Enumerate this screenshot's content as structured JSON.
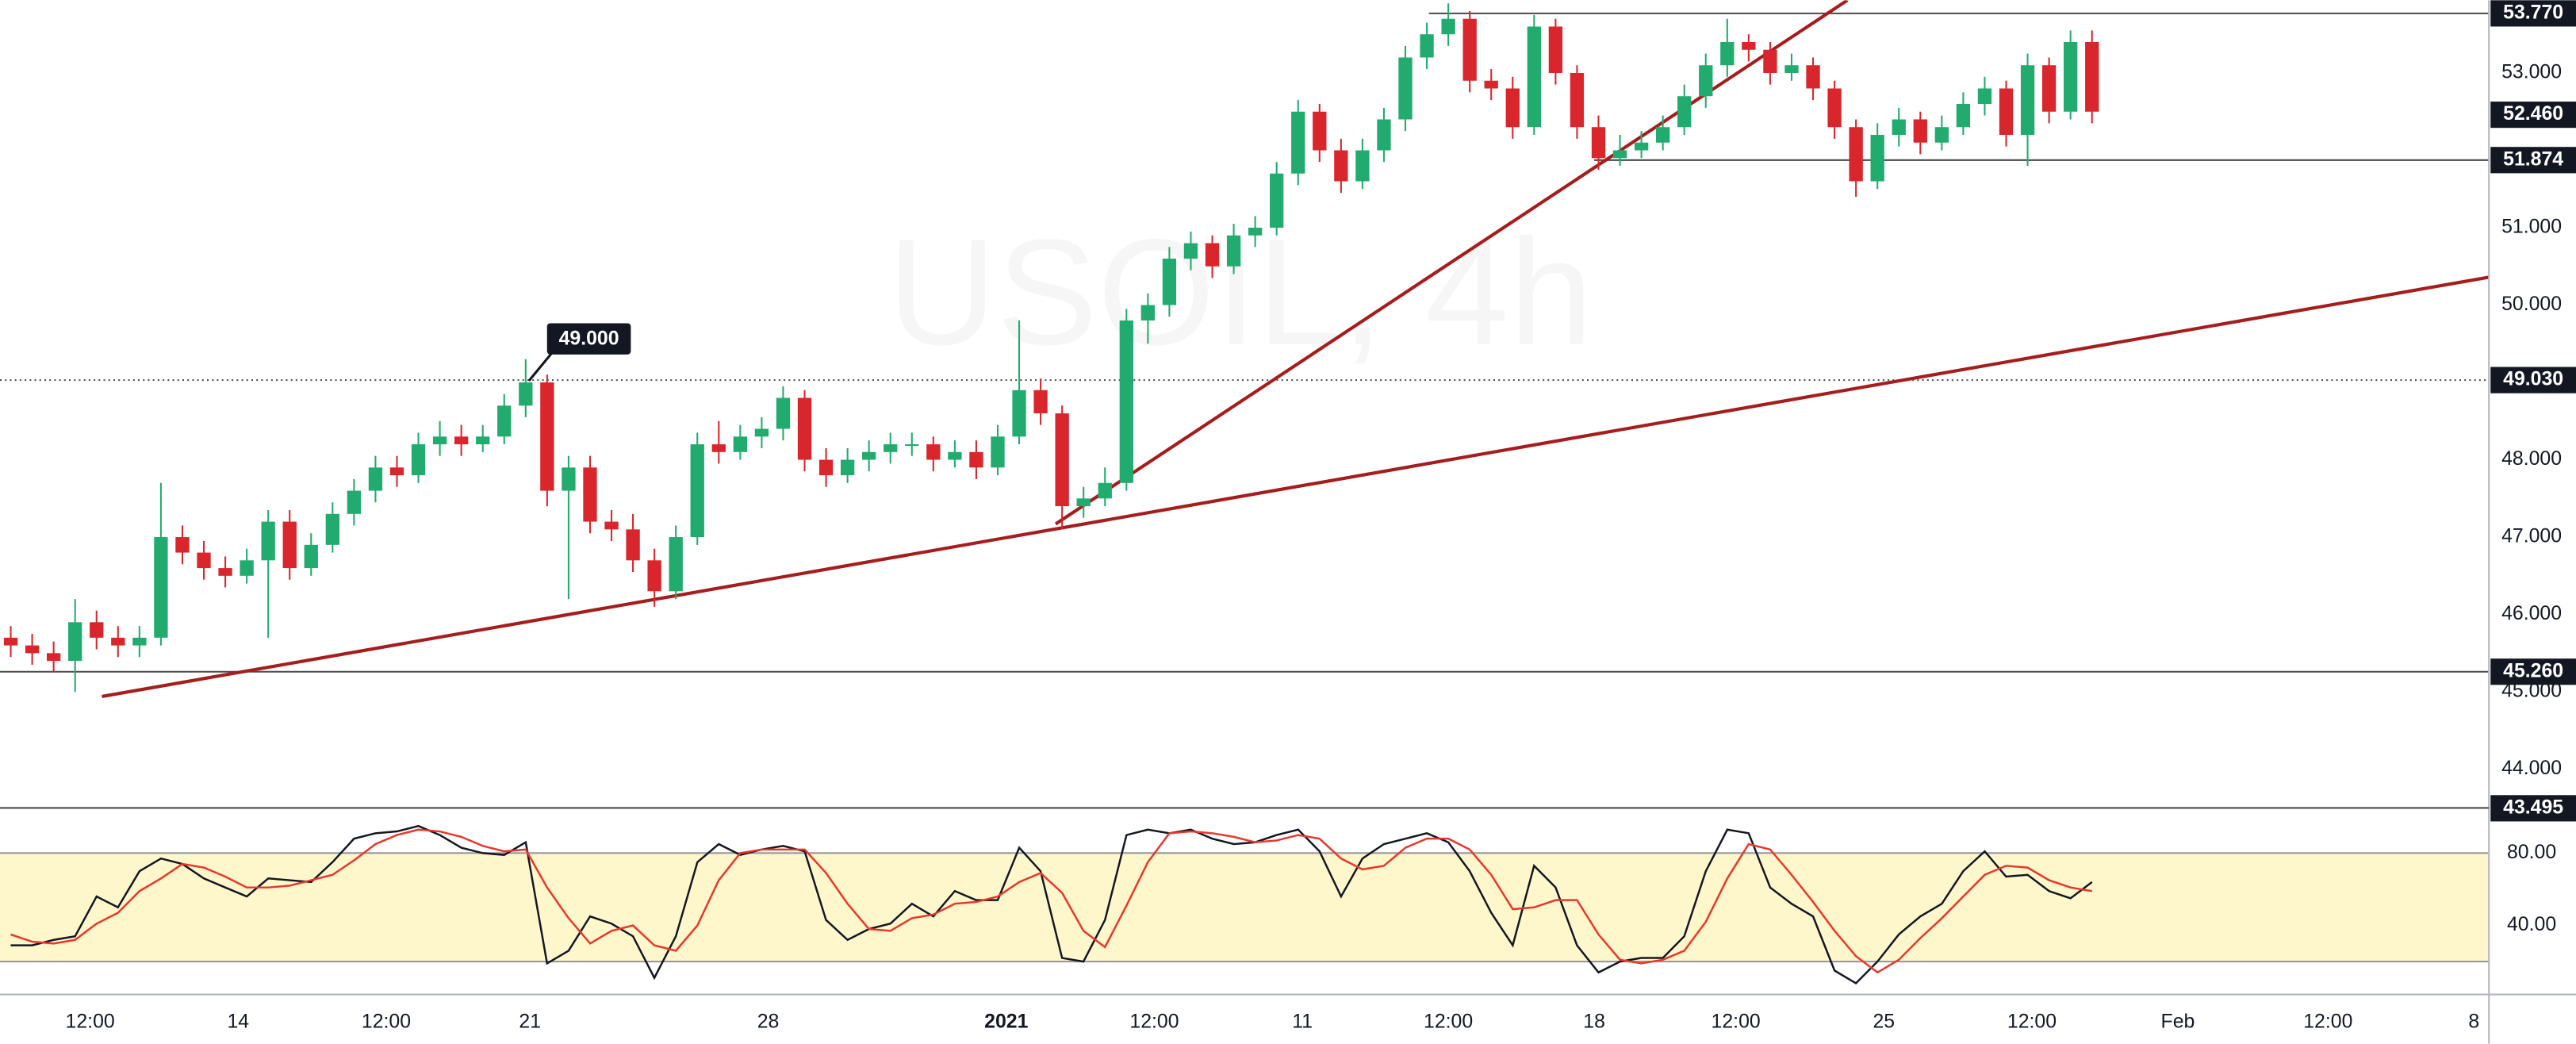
{
  "chart_data": [
    {
      "type": "candlestick",
      "title": "USOIL, 4h",
      "xlim": [
        0,
        116
      ],
      "ylim": [
        43.51,
        53.94
      ],
      "up_color": "#22ab6e",
      "down_color": "#d8262c",
      "trend_color": "#a51d1d",
      "open": [
        45.7,
        45.6,
        45.5,
        45.4,
        45.9,
        45.7,
        45.6,
        45.7,
        47.0,
        46.8,
        46.6,
        46.5,
        46.7,
        47.2,
        46.6,
        46.9,
        47.3,
        47.6,
        47.9,
        47.8,
        48.2,
        48.3,
        48.2,
        48.3,
        48.7,
        49.0,
        47.6,
        47.9,
        47.2,
        47.1,
        46.7,
        46.3,
        47.0,
        48.2,
        48.1,
        48.3,
        48.4,
        48.8,
        48.0,
        47.8,
        48.0,
        48.1,
        48.2,
        48.2,
        48.0,
        48.1,
        47.9,
        48.3,
        48.9,
        48.6,
        47.4,
        47.5,
        47.7,
        49.8,
        50.0,
        50.6,
        50.8,
        50.5,
        50.9,
        51.0,
        51.7,
        52.5,
        52.0,
        51.6,
        52.0,
        52.4,
        53.2,
        53.5,
        53.7,
        52.9,
        52.8,
        52.3,
        53.6,
        53.0,
        52.3,
        51.9,
        52.0,
        52.1,
        52.3,
        52.7,
        53.1,
        53.4,
        53.3,
        53.0,
        53.1,
        52.8,
        52.3,
        51.6,
        52.2,
        52.4,
        52.1,
        52.3,
        52.6,
        52.8,
        52.2,
        53.1,
        52.5,
        53.4
      ],
      "high": [
        45.85,
        45.75,
        45.65,
        46.2,
        46.05,
        45.85,
        45.85,
        47.7,
        47.15,
        46.95,
        46.75,
        46.85,
        47.35,
        47.35,
        47.05,
        47.45,
        47.75,
        48.05,
        48.05,
        48.35,
        48.5,
        48.45,
        48.45,
        48.85,
        49.3,
        49.1,
        48.05,
        48.05,
        47.35,
        47.3,
        46.85,
        47.15,
        48.35,
        48.5,
        48.45,
        48.55,
        48.95,
        48.9,
        48.15,
        48.15,
        48.25,
        48.35,
        48.35,
        48.3,
        48.25,
        48.25,
        48.45,
        49.8,
        49.05,
        48.7,
        47.65,
        47.9,
        49.95,
        50.15,
        50.75,
        50.95,
        50.9,
        51.05,
        51.15,
        51.85,
        52.65,
        52.6,
        52.15,
        52.15,
        52.55,
        53.35,
        53.65,
        53.9,
        53.8,
        53.05,
        52.95,
        53.75,
        53.7,
        53.1,
        52.45,
        52.2,
        52.25,
        52.45,
        52.85,
        53.25,
        53.7,
        53.5,
        53.4,
        53.25,
        53.2,
        52.9,
        52.4,
        52.35,
        52.55,
        52.5,
        52.45,
        52.75,
        52.95,
        52.9,
        53.25,
        53.2,
        53.55,
        53.55
      ],
      "low": [
        45.45,
        45.35,
        45.25,
        45.0,
        45.55,
        45.45,
        45.45,
        45.6,
        46.65,
        46.45,
        46.35,
        46.4,
        45.7,
        46.45,
        46.5,
        46.8,
        47.15,
        47.45,
        47.65,
        47.7,
        48.05,
        48.05,
        48.1,
        48.2,
        48.55,
        47.4,
        46.2,
        47.05,
        46.95,
        46.55,
        46.1,
        46.2,
        46.9,
        47.95,
        48.0,
        48.15,
        48.25,
        47.85,
        47.65,
        47.7,
        47.85,
        47.95,
        48.05,
        47.85,
        47.9,
        47.75,
        47.8,
        48.2,
        48.45,
        47.1,
        47.25,
        47.4,
        47.6,
        49.5,
        49.85,
        50.45,
        50.35,
        50.4,
        50.75,
        50.9,
        51.55,
        51.85,
        51.45,
        51.5,
        51.85,
        52.25,
        53.05,
        53.35,
        52.75,
        52.65,
        52.15,
        52.2,
        52.85,
        52.15,
        51.75,
        51.8,
        51.9,
        52.0,
        52.2,
        52.55,
        52.95,
        53.15,
        52.85,
        52.9,
        52.65,
        52.15,
        51.4,
        51.5,
        52.05,
        51.95,
        52.0,
        52.2,
        52.45,
        52.05,
        51.8,
        52.35,
        52.4,
        52.35
      ],
      "close": [
        45.6,
        45.5,
        45.4,
        45.9,
        45.7,
        45.6,
        45.7,
        47.0,
        46.8,
        46.6,
        46.5,
        46.7,
        47.2,
        46.6,
        46.9,
        47.3,
        47.6,
        47.9,
        47.8,
        48.2,
        48.3,
        48.2,
        48.3,
        48.7,
        49.0,
        47.6,
        47.9,
        47.2,
        47.1,
        46.7,
        46.3,
        47.0,
        48.2,
        48.1,
        48.3,
        48.4,
        48.8,
        48.0,
        47.8,
        48.0,
        48.1,
        48.2,
        48.2,
        48.0,
        48.1,
        47.9,
        48.3,
        48.9,
        48.6,
        47.4,
        47.5,
        47.7,
        49.8,
        50.0,
        50.6,
        50.8,
        50.5,
        50.9,
        51.0,
        51.7,
        52.5,
        52.0,
        51.6,
        52.0,
        52.4,
        53.2,
        53.5,
        53.7,
        52.9,
        52.8,
        52.3,
        53.6,
        53.0,
        52.3,
        51.9,
        52.0,
        52.1,
        52.3,
        52.7,
        53.1,
        53.4,
        53.3,
        53.0,
        53.1,
        52.8,
        52.3,
        51.6,
        52.2,
        52.4,
        52.1,
        52.3,
        52.6,
        52.8,
        52.2,
        53.1,
        52.5,
        53.4,
        52.5
      ],
      "yticks": [
        {
          "value": 53,
          "label": "53.000"
        },
        {
          "value": 51,
          "label": "51.000"
        },
        {
          "value": 50,
          "label": "50.000"
        },
        {
          "value": 48,
          "label": "48.000"
        },
        {
          "value": 47,
          "label": "47.000"
        },
        {
          "value": 46,
          "label": "46.000"
        },
        {
          "value": 45,
          "label": "45.000"
        },
        {
          "value": 44,
          "label": "44.000"
        }
      ],
      "price_labels": [
        {
          "value": 53.77,
          "label": "53.770",
          "line": "solid",
          "from": 66.6
        },
        {
          "value": 52.46,
          "label": "52.460"
        },
        {
          "value": 51.874,
          "label": "51.874",
          "line": "solid",
          "from": 74.3
        },
        {
          "value": 49.03,
          "label": "49.030",
          "line": "dotted",
          "from": 0
        },
        {
          "value": 45.26,
          "label": "45.260",
          "line": "solid",
          "from": 0
        },
        {
          "value": 43.495,
          "label": "43.495",
          "line": "dotted",
          "from": 0
        }
      ],
      "trendlines": [
        {
          "x": [
            4.75,
            116
          ],
          "y": [
            44.94,
            50.36
          ]
        },
        {
          "x": [
            49.2,
            86.1
          ],
          "y": [
            47.17,
            53.94
          ]
        }
      ],
      "callout": {
        "label": "49.000",
        "value": 49
      },
      "xticks": [
        {
          "value": 4.2,
          "label": "12:00"
        },
        {
          "value": 11.1,
          "label": "14"
        },
        {
          "value": 18,
          "label": "12:00"
        },
        {
          "value": 24.7,
          "label": "21"
        },
        {
          "value": 35.8,
          "label": "28"
        },
        {
          "value": 46.9,
          "label": "2021",
          "bold": true
        },
        {
          "value": 53.8,
          "label": "12:00"
        },
        {
          "value": 60.7,
          "label": "11"
        },
        {
          "value": 67.5,
          "label": "12:00"
        },
        {
          "value": 74.3,
          "label": "18"
        },
        {
          "value": 80.9,
          "label": "12:00"
        },
        {
          "value": 87.8,
          "label": "25"
        },
        {
          "value": 94.7,
          "label": "12:00"
        },
        {
          "value": 101.5,
          "label": "Feb"
        },
        {
          "value": 108.5,
          "label": "12:00"
        },
        {
          "value": 115.3,
          "label": "8"
        }
      ]
    },
    {
      "type": "line",
      "xlim": [
        0,
        116
      ],
      "ylim": [
        1.8,
        104.5
      ],
      "band": [
        20,
        80
      ],
      "band_color": "#fff7cc",
      "yticks": [
        {
          "value": 80,
          "label": "80.00"
        },
        {
          "value": 40,
          "label": "40.00"
        }
      ],
      "series": [
        {
          "color": "#131722",
          "values": [
            29,
            29,
            32,
            34,
            56,
            50,
            70,
            77,
            74,
            66,
            61,
            56,
            66,
            65,
            64,
            75,
            88,
            91,
            92,
            95,
            90,
            83,
            80,
            79,
            86,
            19,
            26,
            45,
            41,
            34,
            11,
            34,
            75,
            85,
            79,
            82,
            84,
            81,
            43,
            32,
            38,
            41,
            52,
            45,
            59,
            54,
            54,
            83,
            70,
            22,
            20,
            43,
            90,
            93,
            91,
            93,
            88,
            85,
            86,
            90,
            93,
            81,
            56,
            77,
            85,
            88,
            91,
            86,
            70,
            47,
            29,
            73,
            61,
            29,
            14,
            20,
            22,
            22,
            34,
            70,
            93,
            91,
            61,
            52,
            45,
            15,
            8,
            20,
            35,
            45,
            52,
            70,
            81,
            67,
            68,
            59,
            55,
            64
          ]
        },
        {
          "color": "#e8372c",
          "values": [
            35,
            31,
            30,
            32,
            41,
            47,
            59,
            66,
            74,
            72,
            67,
            61,
            61,
            62,
            65,
            68,
            76,
            85,
            90,
            93,
            92,
            89,
            84,
            81,
            82,
            61,
            44,
            30,
            37,
            40,
            29,
            26,
            40,
            65,
            80,
            82,
            82,
            82,
            69,
            52,
            38,
            37,
            44,
            46,
            52,
            53,
            56,
            64,
            69,
            58,
            37,
            28,
            51,
            75,
            91,
            92,
            91,
            89,
            86,
            87,
            90,
            88,
            77,
            71,
            73,
            83,
            88,
            88,
            82,
            68,
            49,
            50,
            54,
            54,
            35,
            21,
            19,
            21,
            26,
            42,
            66,
            85,
            82,
            68,
            53,
            37,
            23,
            14,
            21,
            33,
            44,
            56,
            68,
            73,
            72,
            65,
            61,
            59
          ]
        }
      ]
    }
  ]
}
